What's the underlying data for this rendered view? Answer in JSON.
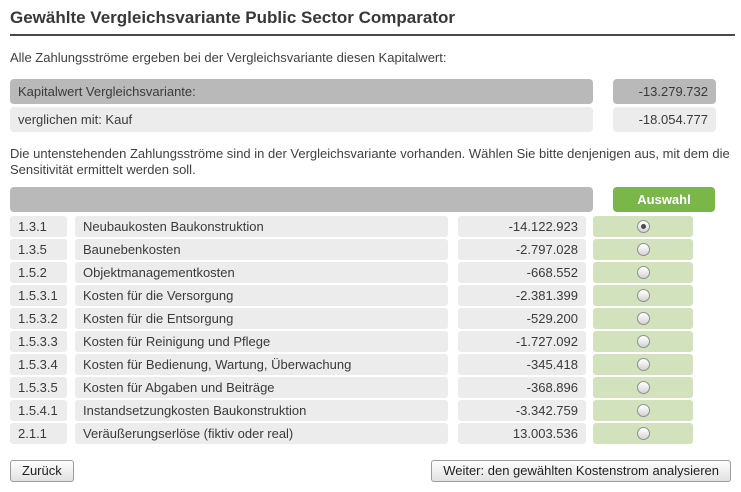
{
  "page": {
    "title": "Gewählte Vergleichsvariante Public Sector Comparator",
    "intro": "Alle Zahlungsströme ergeben bei der Vergleichsvariante diesen Kapitalwert:",
    "instruction": "Die untenstehenden Zahlungsströme sind in der Vergleichsvariante vorhanden. Wählen Sie bitte denjenigen aus, mit dem die Sensitivität ermittelt werden soll."
  },
  "summary": {
    "rows": [
      {
        "label": "Kapitalwert Vergleichsvariante:",
        "value": "-13.279.732",
        "emphasis": true
      },
      {
        "label": "verglichen mit: Kauf",
        "value": "-18.054.777",
        "emphasis": false
      }
    ]
  },
  "selection_table": {
    "header_label": "Auswahl",
    "rows": [
      {
        "code": "1.3.1",
        "label": "Neubaukosten Baukonstruktion",
        "value": "-14.122.923",
        "selected": true
      },
      {
        "code": "1.3.5",
        "label": "Baunebenkosten",
        "value": "-2.797.028",
        "selected": false
      },
      {
        "code": "1.5.2",
        "label": "Objektmanagementkosten",
        "value": "-668.552",
        "selected": false
      },
      {
        "code": "1.5.3.1",
        "label": "Kosten für die Versorgung",
        "value": "-2.381.399",
        "selected": false
      },
      {
        "code": "1.5.3.2",
        "label": "Kosten für die Entsorgung",
        "value": "-529.200",
        "selected": false
      },
      {
        "code": "1.5.3.3",
        "label": "Kosten für Reinigung und Pflege",
        "value": "-1.727.092",
        "selected": false
      },
      {
        "code": "1.5.3.4",
        "label": "Kosten für Bedienung, Wartung, Überwachung",
        "value": "-345.418",
        "selected": false
      },
      {
        "code": "1.5.3.5",
        "label": "Kosten für Abgaben und Beiträge",
        "value": "-368.896",
        "selected": false
      },
      {
        "code": "1.5.4.1",
        "label": "Instandsetzungkosten Baukonstruktion",
        "value": "-3.342.759",
        "selected": false
      },
      {
        "code": "2.1.1",
        "label": "Veräußerungserlöse (fiktiv oder real)",
        "value": "13.003.536",
        "selected": false
      }
    ]
  },
  "footer": {
    "back_label": "Zurück",
    "next_label": "Weiter: den gewählten Kostenstrom analysieren"
  },
  "colors": {
    "accent_green": "#7ab648",
    "light_green": "#d2e2bc",
    "dark_gray_cell": "#b9b9b9",
    "light_gray_cell": "#ececec"
  }
}
